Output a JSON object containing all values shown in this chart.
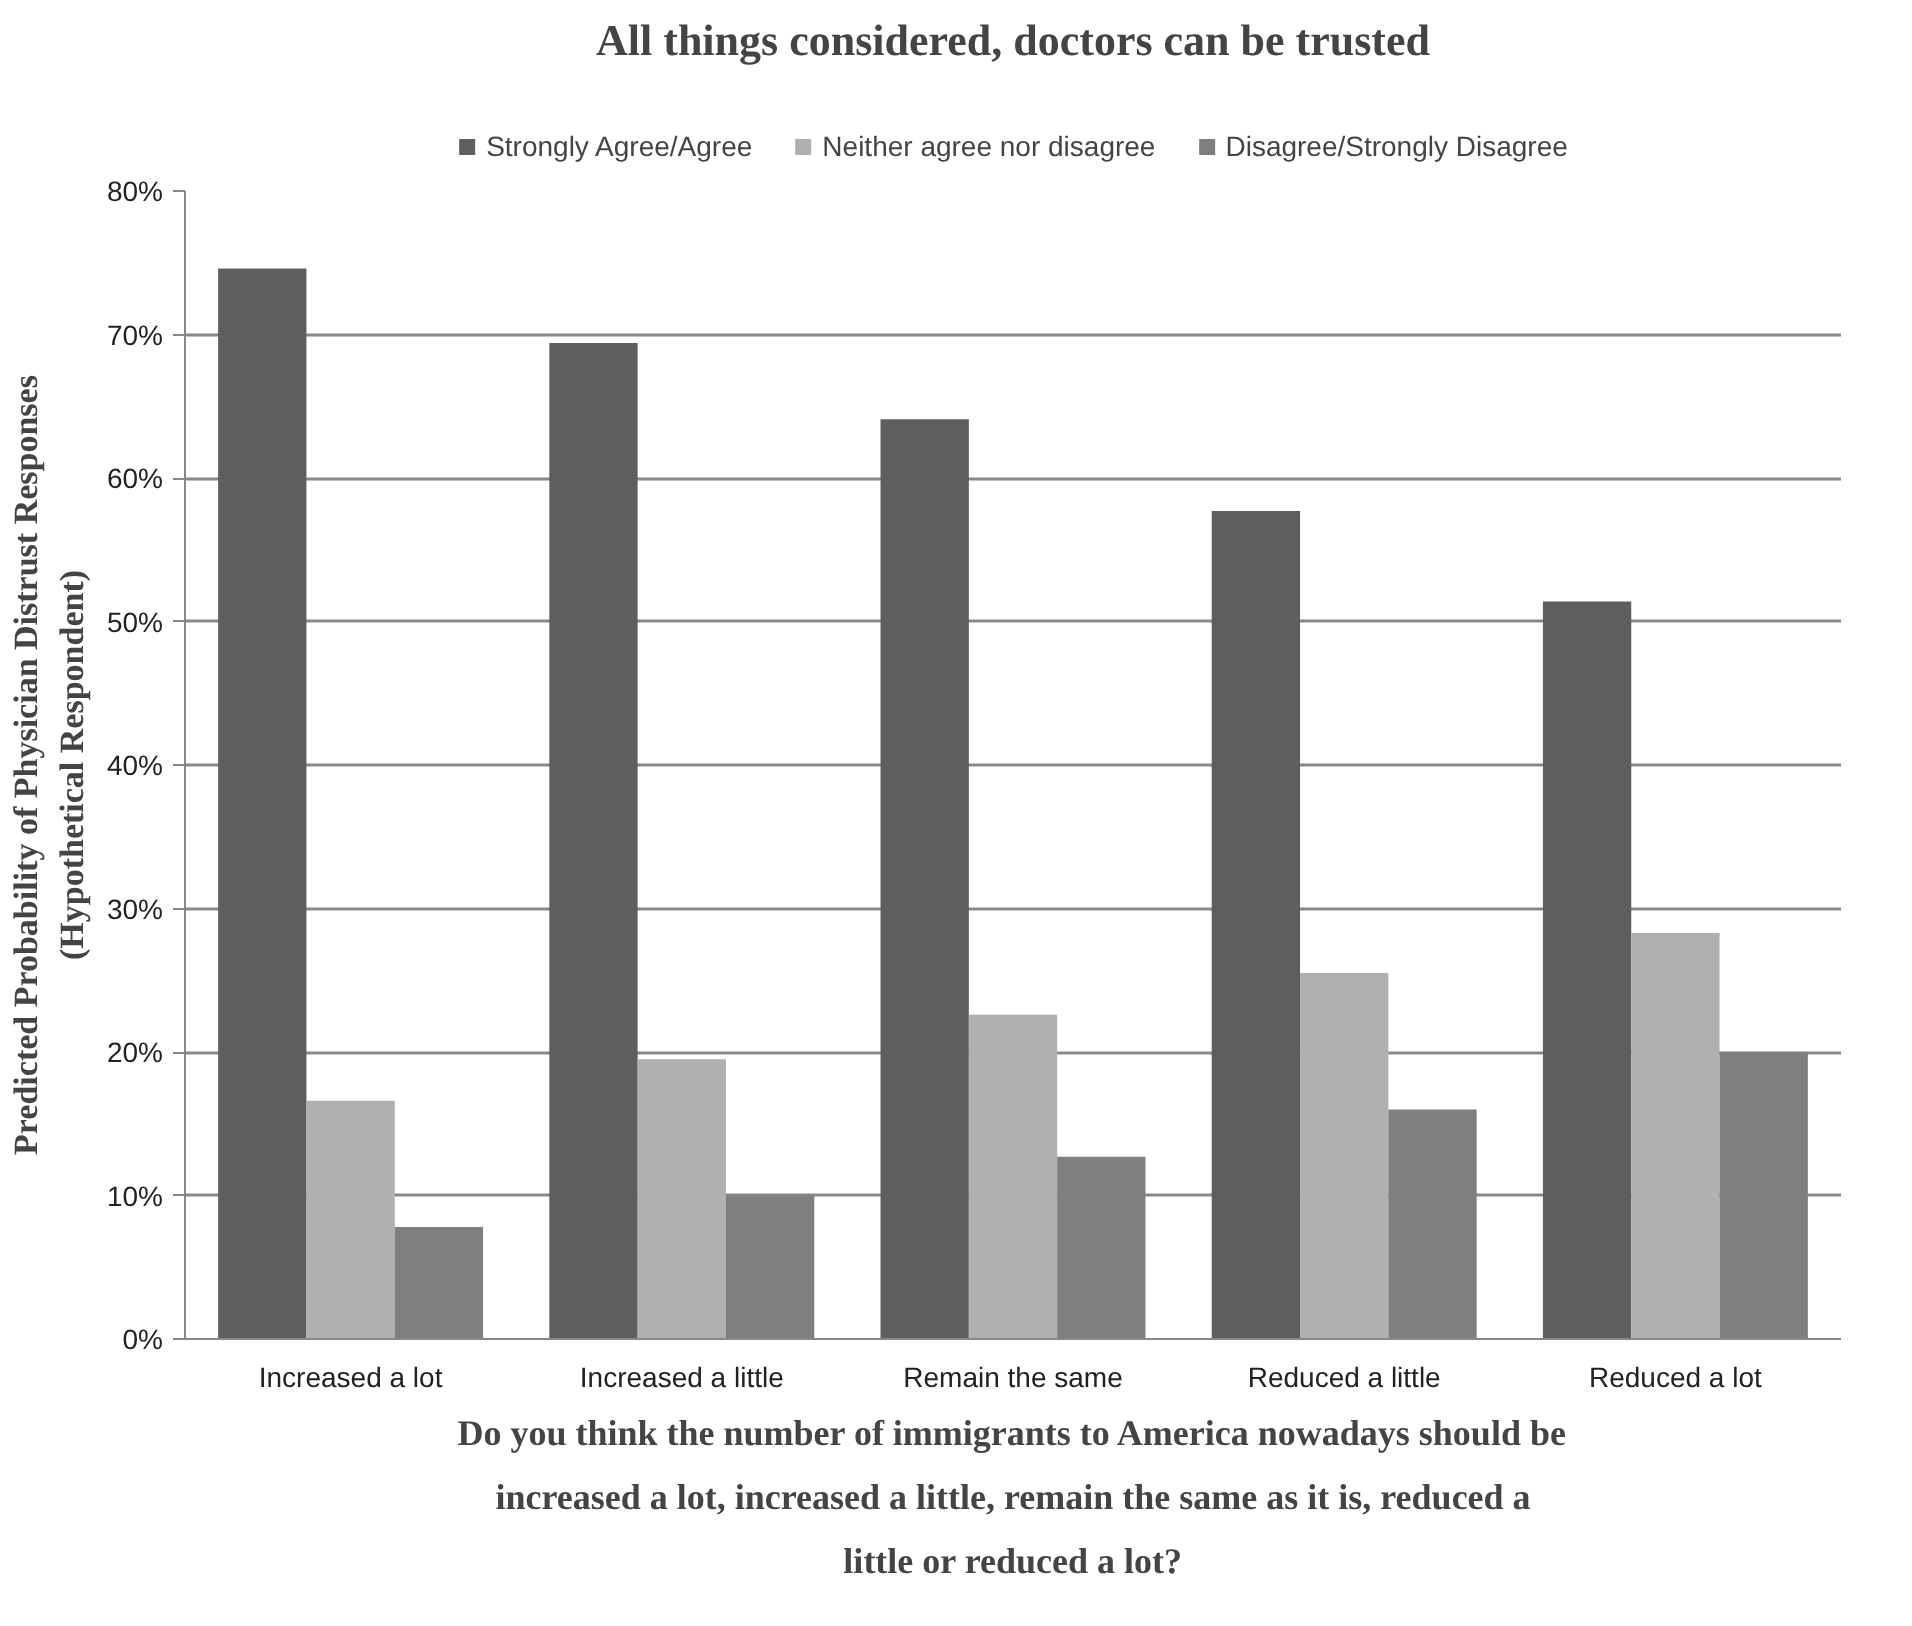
{
  "chart_data": {
    "type": "bar",
    "title": "All things considered, doctors can be trusted",
    "xlabel": "Do you think the number of immigrants to America nowadays should be increased a lot, increased a little, remain the same as it is, reduced a little or reduced a lot?",
    "ylabel": "Predicted Probability of Physician Distrust Responses (Hypothetical Respondent)",
    "categories": [
      "Increased a lot",
      "Increased a little",
      "Remain the same",
      "Reduced a little",
      "Reduced a lot"
    ],
    "series": [
      {
        "name": "Strongly Agree/Agree",
        "color": "#5e5e5e",
        "values": [
          74.6,
          69.4,
          64.1,
          57.7,
          51.4
        ]
      },
      {
        "name": "Neither agree nor disagree",
        "color": "#b0b0b0",
        "values": [
          16.6,
          19.5,
          22.6,
          25.5,
          28.3
        ]
      },
      {
        "name": "Disagree/Strongly Disagree",
        "color": "#7f7f7f",
        "values": [
          7.8,
          10.0,
          12.7,
          16.0,
          20.0
        ]
      }
    ],
    "ylim": [
      0,
      80
    ],
    "yticks": [
      {
        "value": 0,
        "label": "0%"
      },
      {
        "value": 10,
        "label": "10%"
      },
      {
        "value": 20,
        "label": "20%"
      },
      {
        "value": 30,
        "label": "30%"
      },
      {
        "value": 40,
        "label": "40%"
      },
      {
        "value": 50,
        "label": "50%"
      },
      {
        "value": 60,
        "label": "60%"
      },
      {
        "value": 70,
        "label": "70%"
      },
      {
        "value": 80,
        "label": "80%"
      }
    ],
    "grid": "y",
    "legend": "top"
  }
}
